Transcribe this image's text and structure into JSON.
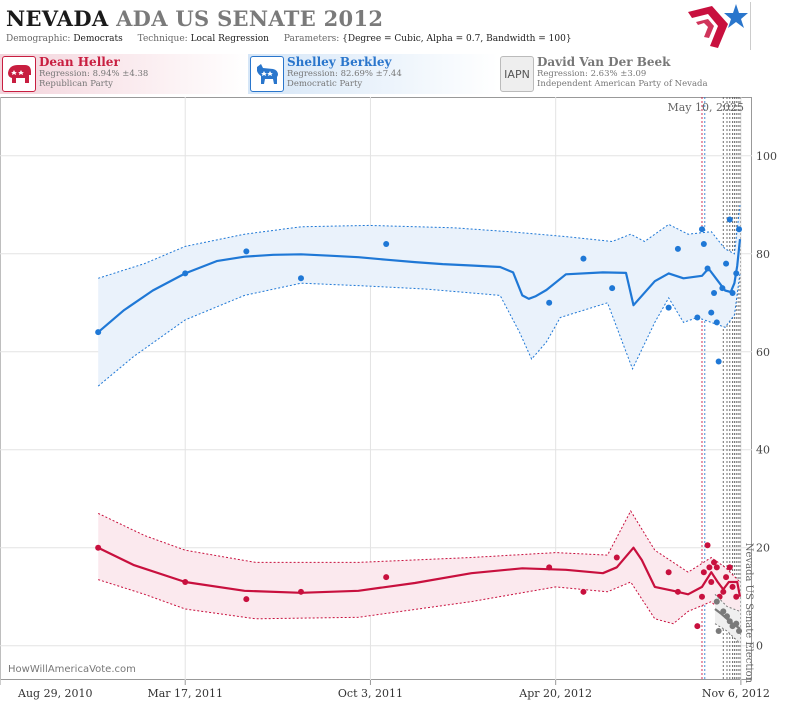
{
  "header": {
    "title_state": "NEVADA",
    "title_rest": "ADA US SENATE 2012",
    "demographic_label": "Demographic:",
    "demographic_value": "Democrats",
    "technique_label": "Technique:",
    "technique_value": "Local Regression",
    "parameters_label": "Parameters:",
    "parameters_value": "{Degree = Cubic, Alpha = 0.7, Bandwidth = 100}"
  },
  "candidates": [
    {
      "name": "Dean Heller",
      "regression": "Regression: 8.94% ±4.38",
      "party": "Republican Party",
      "badge": "elephant-icon",
      "color": "#c81e40"
    },
    {
      "name": "Shelley Berkley",
      "regression": "Regression: 82.69% ±7.44",
      "party": "Democratic Party",
      "badge": "donkey-icon",
      "color": "#2a76cc"
    },
    {
      "name": "David Van Der Beek",
      "regression": "Regression: 2.63% ±3.09",
      "party": "Independent American Party  of Nevada",
      "badge": "IAPN",
      "color": "#808080"
    }
  ],
  "chart_data": {
    "type": "line",
    "date_label": "May 10, 2025",
    "watermark": "HowWillAmericaVote.com",
    "election_label": "Nevada US Senate Election",
    "x_ticks": [
      "Aug 29, 2010",
      "Mar 17, 2011",
      "Oct 3, 2011",
      "Apr 20, 2012",
      "Nov 6, 2012"
    ],
    "y_ticks": [
      0,
      20,
      40,
      60,
      80,
      100
    ],
    "ylim": [
      -7,
      112
    ],
    "xlim": [
      "2010-08-29",
      "2012-11-18"
    ],
    "grid": true,
    "poll_dates": [
      "2012-09-25",
      "2012-09-28",
      "2012-10-18",
      "2012-10-22",
      "2012-10-25",
      "2012-10-28",
      "2012-10-30",
      "2012-11-01",
      "2012-11-03",
      "2012-11-05"
    ],
    "series": [
      {
        "name": "Shelley Berkley",
        "color": "#1f78d6",
        "band_fill": "#eaf2fb",
        "line": [
          [
            "2010-12-13",
            64
          ],
          [
            "2011-01-10",
            68.5
          ],
          [
            "2011-02-10",
            72.5
          ],
          [
            "2011-03-17",
            76
          ],
          [
            "2011-04-20",
            78.5
          ],
          [
            "2011-05-20",
            79.4
          ],
          [
            "2011-06-20",
            79.8
          ],
          [
            "2011-07-20",
            79.9
          ],
          [
            "2011-08-20",
            79.6
          ],
          [
            "2011-09-20",
            79.3
          ],
          [
            "2011-10-20",
            78.8
          ],
          [
            "2011-11-20",
            78.3
          ],
          [
            "2011-12-20",
            77.9
          ],
          [
            "2012-01-20",
            77.6
          ],
          [
            "2012-02-20",
            77.3
          ],
          [
            "2012-03-05",
            76.2
          ],
          [
            "2012-03-15",
            71.5
          ],
          [
            "2012-03-22",
            70.8
          ],
          [
            "2012-03-29",
            71.3
          ],
          [
            "2012-04-10",
            72.6
          ],
          [
            "2012-05-01",
            75.8
          ],
          [
            "2012-06-10",
            76.2
          ],
          [
            "2012-07-05",
            76.1
          ],
          [
            "2012-07-13",
            69.5
          ],
          [
            "2012-08-05",
            74.4
          ],
          [
            "2012-08-20",
            76
          ],
          [
            "2012-09-05",
            75
          ],
          [
            "2012-09-25",
            75.5
          ],
          [
            "2012-10-02",
            77
          ],
          [
            "2012-10-12",
            74.5
          ],
          [
            "2012-10-20",
            72.5
          ],
          [
            "2012-10-26",
            72.2
          ],
          [
            "2012-10-30",
            74
          ],
          [
            "2012-11-02",
            77.5
          ],
          [
            "2012-11-05",
            83
          ]
        ],
        "upper": [
          [
            "2010-12-13",
            75
          ],
          [
            "2011-02-01",
            78
          ],
          [
            "2011-03-17",
            81.5
          ],
          [
            "2011-05-20",
            84
          ],
          [
            "2011-07-20",
            85.5
          ],
          [
            "2011-10-01",
            85.8
          ],
          [
            "2012-01-01",
            85.3
          ],
          [
            "2012-03-01",
            84.5
          ],
          [
            "2012-05-01",
            83.5
          ],
          [
            "2012-06-20",
            82.5
          ],
          [
            "2012-07-10",
            84
          ],
          [
            "2012-07-25",
            82.5
          ],
          [
            "2012-08-20",
            86
          ],
          [
            "2012-09-10",
            84
          ],
          [
            "2012-10-05",
            84.5
          ],
          [
            "2012-10-20",
            81
          ],
          [
            "2012-10-30",
            80
          ],
          [
            "2012-11-05",
            90
          ]
        ],
        "lower": [
          [
            "2010-12-13",
            53
          ],
          [
            "2011-01-20",
            59
          ],
          [
            "2011-03-17",
            66.5
          ],
          [
            "2011-05-20",
            71.5
          ],
          [
            "2011-07-20",
            74
          ],
          [
            "2011-09-20",
            73.5
          ],
          [
            "2011-12-01",
            72.8
          ],
          [
            "2012-02-20",
            71.5
          ],
          [
            "2012-03-12",
            64
          ],
          [
            "2012-03-25",
            58.5
          ],
          [
            "2012-04-10",
            62
          ],
          [
            "2012-04-25",
            67
          ],
          [
            "2012-06-15",
            70
          ],
          [
            "2012-07-12",
            56.5
          ],
          [
            "2012-08-05",
            66
          ],
          [
            "2012-08-20",
            71
          ],
          [
            "2012-09-05",
            66
          ],
          [
            "2012-09-20",
            67
          ],
          [
            "2012-10-20",
            65
          ],
          [
            "2012-10-30",
            67.5
          ],
          [
            "2012-11-05",
            76
          ]
        ],
        "points": [
          [
            "2010-12-13",
            64
          ],
          [
            "2011-03-17",
            76
          ],
          [
            "2011-05-22",
            80.5
          ],
          [
            "2011-07-20",
            75
          ],
          [
            "2011-10-20",
            82
          ],
          [
            "2012-04-13",
            70
          ],
          [
            "2012-05-20",
            79
          ],
          [
            "2012-06-20",
            73
          ],
          [
            "2012-08-20",
            69
          ],
          [
            "2012-08-30",
            81
          ],
          [
            "2012-09-20",
            67
          ],
          [
            "2012-09-25",
            85
          ],
          [
            "2012-09-27",
            82
          ],
          [
            "2012-10-01",
            77
          ],
          [
            "2012-10-05",
            68
          ],
          [
            "2012-10-08",
            72
          ],
          [
            "2012-10-11",
            66
          ],
          [
            "2012-10-13",
            58
          ],
          [
            "2012-10-17",
            73
          ],
          [
            "2012-10-21",
            78
          ],
          [
            "2012-10-25",
            87
          ],
          [
            "2012-10-28",
            72
          ],
          [
            "2012-11-01",
            76
          ],
          [
            "2012-11-04",
            85
          ]
        ]
      },
      {
        "name": "Dean Heller",
        "color": "#c8103e",
        "band_fill": "#fbe9ee",
        "line": [
          [
            "2010-12-13",
            20
          ],
          [
            "2011-01-20",
            16.5
          ],
          [
            "2011-03-17",
            13
          ],
          [
            "2011-05-20",
            11.2
          ],
          [
            "2011-07-20",
            10.8
          ],
          [
            "2011-09-20",
            11.2
          ],
          [
            "2011-11-20",
            12.8
          ],
          [
            "2012-01-20",
            14.8
          ],
          [
            "2012-03-15",
            15.8
          ],
          [
            "2012-05-01",
            15.5
          ],
          [
            "2012-06-10",
            14.8
          ],
          [
            "2012-06-25",
            16
          ],
          [
            "2012-07-13",
            20
          ],
          [
            "2012-07-22",
            17.5
          ],
          [
            "2012-08-05",
            12
          ],
          [
            "2012-08-25",
            11.2
          ],
          [
            "2012-09-10",
            10.5
          ],
          [
            "2012-09-25",
            12
          ],
          [
            "2012-10-05",
            15
          ],
          [
            "2012-10-12",
            13
          ],
          [
            "2012-10-18",
            11.5
          ],
          [
            "2012-10-24",
            13
          ],
          [
            "2012-11-02",
            13
          ],
          [
            "2012-11-05",
            10
          ]
        ],
        "upper": [
          [
            "2010-12-13",
            27
          ],
          [
            "2011-02-01",
            22.5
          ],
          [
            "2011-03-17",
            19.5
          ],
          [
            "2011-06-01",
            17
          ],
          [
            "2011-09-20",
            17
          ],
          [
            "2012-01-20",
            18
          ],
          [
            "2012-04-20",
            19
          ],
          [
            "2012-06-15",
            18.5
          ],
          [
            "2012-07-10",
            27.5
          ],
          [
            "2012-08-05",
            19.5
          ],
          [
            "2012-08-25",
            17
          ],
          [
            "2012-09-10",
            15
          ],
          [
            "2012-10-05",
            18
          ],
          [
            "2012-10-20",
            16
          ],
          [
            "2012-11-05",
            13
          ]
        ],
        "lower": [
          [
            "2010-12-13",
            13.5
          ],
          [
            "2011-02-01",
            10.5
          ],
          [
            "2011-03-17",
            7.5
          ],
          [
            "2011-06-01",
            5.5
          ],
          [
            "2011-09-20",
            5.8
          ],
          [
            "2012-01-20",
            9
          ],
          [
            "2012-04-20",
            12
          ],
          [
            "2012-06-15",
            11
          ],
          [
            "2012-07-10",
            13
          ],
          [
            "2012-08-05",
            5.5
          ],
          [
            "2012-08-25",
            4.5
          ],
          [
            "2012-09-10",
            7
          ],
          [
            "2012-10-05",
            9
          ],
          [
            "2012-10-20",
            6
          ],
          [
            "2012-11-05",
            5
          ]
        ],
        "points": [
          [
            "2010-12-13",
            20
          ],
          [
            "2011-03-17",
            13
          ],
          [
            "2011-05-22",
            9.5
          ],
          [
            "2011-07-20",
            11
          ],
          [
            "2011-10-20",
            14
          ],
          [
            "2012-04-13",
            16
          ],
          [
            "2012-05-20",
            11
          ],
          [
            "2012-06-25",
            18
          ],
          [
            "2012-08-20",
            15
          ],
          [
            "2012-08-30",
            11
          ],
          [
            "2012-09-20",
            4
          ],
          [
            "2012-09-25",
            10
          ],
          [
            "2012-09-27",
            15
          ],
          [
            "2012-10-01",
            20.5
          ],
          [
            "2012-10-03",
            16
          ],
          [
            "2012-10-05",
            13
          ],
          [
            "2012-10-08",
            17
          ],
          [
            "2012-10-11",
            16
          ],
          [
            "2012-10-14",
            10
          ],
          [
            "2012-10-18",
            11
          ],
          [
            "2012-10-21",
            14
          ],
          [
            "2012-10-25",
            16
          ],
          [
            "2012-10-28",
            12
          ],
          [
            "2012-11-01",
            10
          ]
        ]
      },
      {
        "name": "David Van Der Beek",
        "color": "#7a7a7a",
        "band_fill": "#efefef",
        "line": [
          [
            "2012-10-09",
            7.5
          ],
          [
            "2012-10-16",
            6.5
          ],
          [
            "2012-10-22",
            5.5
          ],
          [
            "2012-10-28",
            4.5
          ],
          [
            "2012-11-01",
            4
          ],
          [
            "2012-11-05",
            3.5
          ]
        ],
        "upper": [
          [
            "2012-10-09",
            10.5
          ],
          [
            "2012-10-22",
            8
          ],
          [
            "2012-11-05",
            7
          ]
        ],
        "lower": [
          [
            "2012-10-09",
            4.5
          ],
          [
            "2012-10-22",
            3
          ],
          [
            "2012-11-05",
            0.5
          ]
        ],
        "points": [
          [
            "2012-10-11",
            9
          ],
          [
            "2012-10-13",
            3
          ],
          [
            "2012-10-18",
            7
          ],
          [
            "2012-10-22",
            6
          ],
          [
            "2012-10-25",
            5
          ],
          [
            "2012-10-28",
            4
          ],
          [
            "2012-11-01",
            4.5
          ],
          [
            "2012-11-04",
            3
          ]
        ]
      }
    ]
  }
}
